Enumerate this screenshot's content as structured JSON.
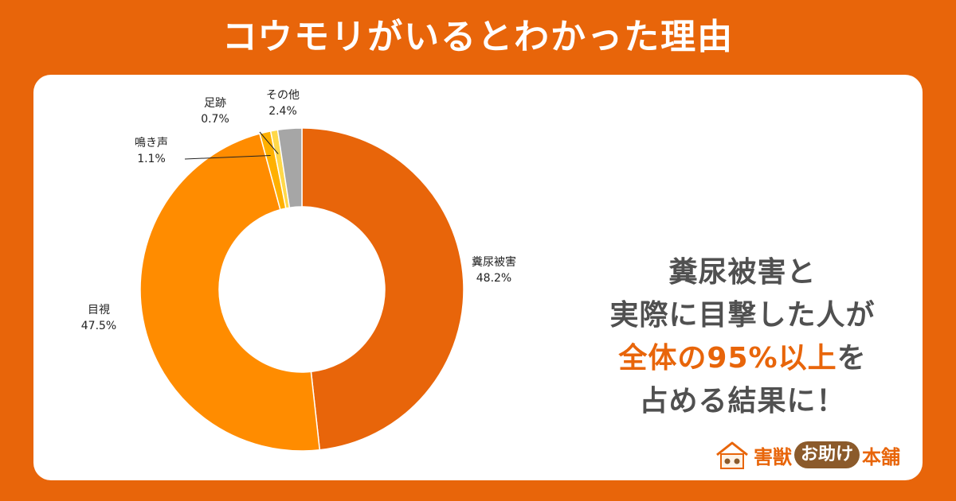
{
  "title": "コウモリがいるとわかった理由",
  "headline": {
    "line1": "糞尿被害と",
    "line2": "実際に目撃した人が",
    "line3_highlight": "全体の95%以上",
    "line3_rest": "を",
    "line4": "占める結果に！"
  },
  "brand": {
    "part1": "害獣",
    "part2": "お助け",
    "part3": "本舗"
  },
  "chart_data": {
    "type": "pie",
    "donut": true,
    "unit": "%",
    "slices": [
      {
        "label": "糞尿被害",
        "value": 48.2,
        "value_label": "48.2%",
        "color": "#E8650A"
      },
      {
        "label": "目視",
        "value": 47.5,
        "value_label": "47.5%",
        "color": "#FF8C00"
      },
      {
        "label": "鳴き声",
        "value": 1.1,
        "value_label": "1.1%",
        "color": "#FFB000"
      },
      {
        "label": "足跡",
        "value": 0.7,
        "value_label": "0.7%",
        "color": "#FFD84A"
      },
      {
        "label": "その他",
        "value": 2.4,
        "value_label": "2.4%",
        "color": "#A6A6A6"
      }
    ]
  }
}
